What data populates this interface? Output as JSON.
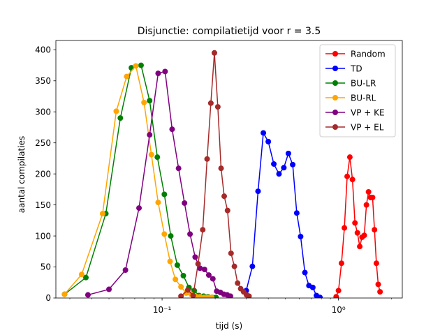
{
  "chart_data": {
    "type": "line",
    "title": "Disjunctie: compilatietijd voor r = 3.5",
    "xlabel": "tijd (s)",
    "ylabel": "aantal compilaties",
    "xscale": "log",
    "xlim": [
      0.025,
      2.3
    ],
    "ylim": [
      0,
      415
    ],
    "yticks": [
      0,
      50,
      100,
      150,
      200,
      250,
      300,
      350,
      400
    ],
    "xticks": [
      {
        "value": 0.1,
        "label": "10⁻¹"
      },
      {
        "value": 1,
        "label": "10⁰"
      }
    ],
    "legend_position": "upper right",
    "grid": false,
    "series": [
      {
        "name": "Random",
        "color": "#ff0000",
        "points": [
          [
            0.97,
            2
          ],
          [
            1.0,
            12
          ],
          [
            1.04,
            56
          ],
          [
            1.08,
            113
          ],
          [
            1.12,
            196
          ],
          [
            1.16,
            227
          ],
          [
            1.2,
            191
          ],
          [
            1.24,
            121
          ],
          [
            1.28,
            105
          ],
          [
            1.32,
            83
          ],
          [
            1.36,
            98
          ],
          [
            1.4,
            101
          ],
          [
            1.44,
            150
          ],
          [
            1.48,
            171
          ],
          [
            1.52,
            162
          ],
          [
            1.56,
            162
          ],
          [
            1.6,
            110
          ],
          [
            1.64,
            56
          ],
          [
            1.68,
            22
          ],
          [
            1.72,
            10
          ]
        ]
      },
      {
        "name": "TD",
        "color": "#0000ff",
        "points": [
          [
            0.3,
            12
          ],
          [
            0.325,
            51
          ],
          [
            0.35,
            172
          ],
          [
            0.375,
            266
          ],
          [
            0.4,
            252
          ],
          [
            0.43,
            216
          ],
          [
            0.46,
            200
          ],
          [
            0.49,
            210
          ],
          [
            0.52,
            233
          ],
          [
            0.55,
            215
          ],
          [
            0.58,
            137
          ],
          [
            0.61,
            99
          ],
          [
            0.645,
            41
          ],
          [
            0.68,
            20
          ],
          [
            0.715,
            17
          ],
          [
            0.75,
            4
          ],
          [
            0.785,
            1
          ]
        ]
      },
      {
        "name": "BU-LR",
        "color": "#008000",
        "points": [
          [
            0.028,
            6
          ],
          [
            0.037,
            33
          ],
          [
            0.048,
            136
          ],
          [
            0.058,
            290
          ],
          [
            0.067,
            371
          ],
          [
            0.076,
            375
          ],
          [
            0.085,
            318
          ],
          [
            0.094,
            227
          ],
          [
            0.103,
            167
          ],
          [
            0.112,
            100
          ],
          [
            0.122,
            53
          ],
          [
            0.132,
            36
          ],
          [
            0.142,
            17
          ],
          [
            0.152,
            12
          ],
          [
            0.162,
            4
          ],
          [
            0.172,
            3
          ],
          [
            0.182,
            2
          ],
          [
            0.192,
            1
          ],
          [
            0.202,
            1
          ]
        ]
      },
      {
        "name": "BU-RL",
        "color": "#ffa500",
        "points": [
          [
            0.028,
            6
          ],
          [
            0.035,
            38
          ],
          [
            0.046,
            136
          ],
          [
            0.055,
            301
          ],
          [
            0.063,
            357
          ],
          [
            0.071,
            374
          ],
          [
            0.079,
            315
          ],
          [
            0.087,
            231
          ],
          [
            0.095,
            154
          ],
          [
            0.103,
            103
          ],
          [
            0.111,
            59
          ],
          [
            0.119,
            30
          ],
          [
            0.128,
            18
          ],
          [
            0.137,
            8
          ],
          [
            0.146,
            6
          ],
          [
            0.155,
            3
          ],
          [
            0.164,
            2
          ],
          [
            0.173,
            1
          ],
          [
            0.182,
            1
          ],
          [
            0.191,
            1
          ]
        ]
      },
      {
        "name": "VP + KE",
        "color": "#800080",
        "points": [
          [
            0.038,
            5
          ],
          [
            0.05,
            14
          ],
          [
            0.062,
            45
          ],
          [
            0.074,
            145
          ],
          [
            0.085,
            263
          ],
          [
            0.095,
            362
          ],
          [
            0.104,
            365
          ],
          [
            0.114,
            272
          ],
          [
            0.124,
            209
          ],
          [
            0.134,
            153
          ],
          [
            0.144,
            103
          ],
          [
            0.154,
            66
          ],
          [
            0.164,
            48
          ],
          [
            0.174,
            46
          ],
          [
            0.184,
            37
          ],
          [
            0.194,
            31
          ],
          [
            0.204,
            11
          ],
          [
            0.214,
            9
          ],
          [
            0.224,
            6
          ],
          [
            0.234,
            5
          ],
          [
            0.244,
            3
          ]
        ]
      },
      {
        "name": "VP + EL",
        "color": "#a52a2a",
        "points": [
          [
            0.128,
            3
          ],
          [
            0.14,
            13
          ],
          [
            0.15,
            4
          ],
          [
            0.16,
            55
          ],
          [
            0.17,
            110
          ],
          [
            0.18,
            224
          ],
          [
            0.189,
            314
          ],
          [
            0.198,
            395
          ],
          [
            0.207,
            308
          ],
          [
            0.216,
            209
          ],
          [
            0.225,
            164
          ],
          [
            0.235,
            141
          ],
          [
            0.246,
            72
          ],
          [
            0.257,
            51
          ],
          [
            0.268,
            24
          ],
          [
            0.279,
            15
          ],
          [
            0.29,
            10
          ],
          [
            0.301,
            5
          ],
          [
            0.311,
            3
          ]
        ]
      }
    ]
  }
}
